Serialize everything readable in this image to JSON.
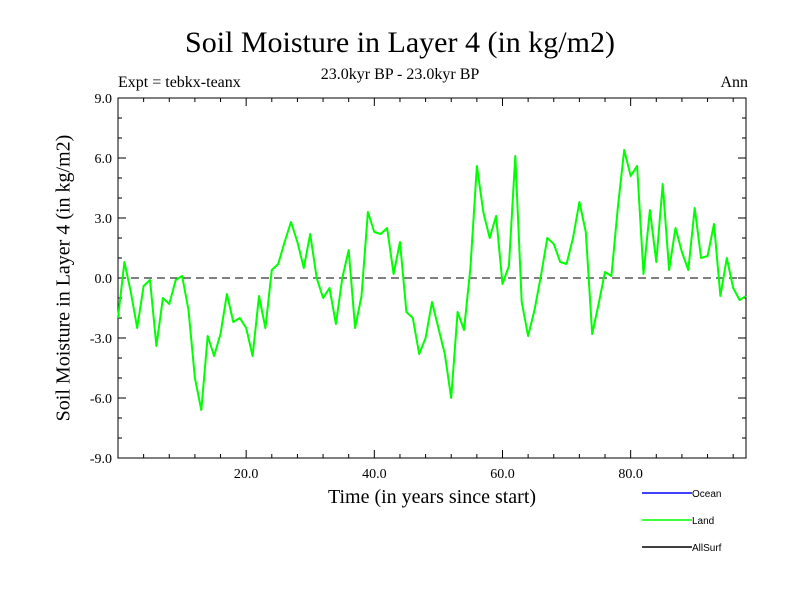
{
  "chart_data": {
    "type": "line",
    "title": "Soil Moisture in Layer 4 (in kg/m2)",
    "subtitle": "23.0kyr BP - 23.0kyr BP",
    "experiment": "Expt = tebkx-teanx",
    "season": "Ann",
    "xlabel": "Time (in years since start)",
    "ylabel": "Soil Moisture in Layer 4 (in kg/m2)",
    "xlim": [
      0,
      98
    ],
    "ylim": [
      -9,
      9
    ],
    "x_ticks": [
      20,
      40,
      60,
      80
    ],
    "x_tick_labels": [
      "20.0",
      "40.0",
      "60.0",
      "80.0"
    ],
    "y_ticks": [
      -9,
      -6,
      -3,
      0,
      3,
      6,
      9
    ],
    "y_tick_labels": [
      "-9.0",
      "-6.0",
      "-3.0",
      "0.0",
      "3.0",
      "6.0",
      "9.0"
    ],
    "reference_line": 0,
    "series": [
      {
        "name": "Ocean",
        "color": "#0000ff",
        "values": []
      },
      {
        "name": "Land",
        "color": "#00ff00",
        "x": [
          0,
          1,
          2,
          3,
          4,
          5,
          6,
          7,
          8,
          9,
          10,
          11,
          12,
          13,
          14,
          15,
          16,
          17,
          18,
          19,
          20,
          21,
          22,
          23,
          24,
          25,
          26,
          27,
          28,
          29,
          30,
          31,
          32,
          33,
          34,
          35,
          36,
          37,
          38,
          39,
          40,
          41,
          42,
          43,
          44,
          45,
          46,
          47,
          48,
          49,
          50,
          51,
          52,
          53,
          54,
          55,
          56,
          57,
          58,
          59,
          60,
          61,
          62,
          63,
          64,
          65,
          66,
          67,
          68,
          69,
          70,
          71,
          72,
          73,
          74,
          75,
          76,
          77,
          78,
          79,
          80,
          81,
          82,
          83,
          84,
          85,
          86,
          87,
          88,
          89,
          90,
          91,
          92,
          93,
          94,
          95,
          96,
          97,
          98
        ],
        "values": [
          -2.0,
          0.8,
          -0.7,
          -2.5,
          -0.4,
          -0.1,
          -3.4,
          -1.0,
          -1.3,
          -0.1,
          0.1,
          -1.6,
          -5.0,
          -6.6,
          -2.9,
          -3.9,
          -2.8,
          -0.8,
          -2.2,
          -2.0,
          -2.5,
          -3.9,
          -0.9,
          -2.5,
          0.4,
          0.7,
          1.8,
          2.8,
          1.8,
          0.5,
          2.2,
          0.0,
          -1.0,
          -0.5,
          -2.3,
          0.0,
          1.4,
          -2.5,
          -0.9,
          3.3,
          2.3,
          2.2,
          2.5,
          0.2,
          1.8,
          -1.7,
          -2.0,
          -3.8,
          -3.0,
          -1.2,
          -2.5,
          -3.8,
          -6.0,
          -1.7,
          -2.6,
          0.5,
          5.6,
          3.3,
          2.0,
          3.1,
          -0.3,
          0.6,
          6.1,
          -1.2,
          -2.9,
          -1.6,
          0.1,
          2.0,
          1.7,
          0.8,
          0.7,
          2.0,
          3.8,
          2.3,
          -2.8,
          -1.3,
          0.3,
          0.1,
          3.5,
          6.4,
          5.1,
          5.6,
          0.2,
          3.4,
          0.8,
          4.7,
          0.4,
          2.5,
          1.3,
          0.4,
          3.5,
          1.0,
          1.1,
          2.7,
          -0.9,
          1.0,
          -0.5,
          -1.1,
          -0.9
        ]
      },
      {
        "name": "AllSurf",
        "color": "#000000",
        "values": []
      }
    ]
  }
}
